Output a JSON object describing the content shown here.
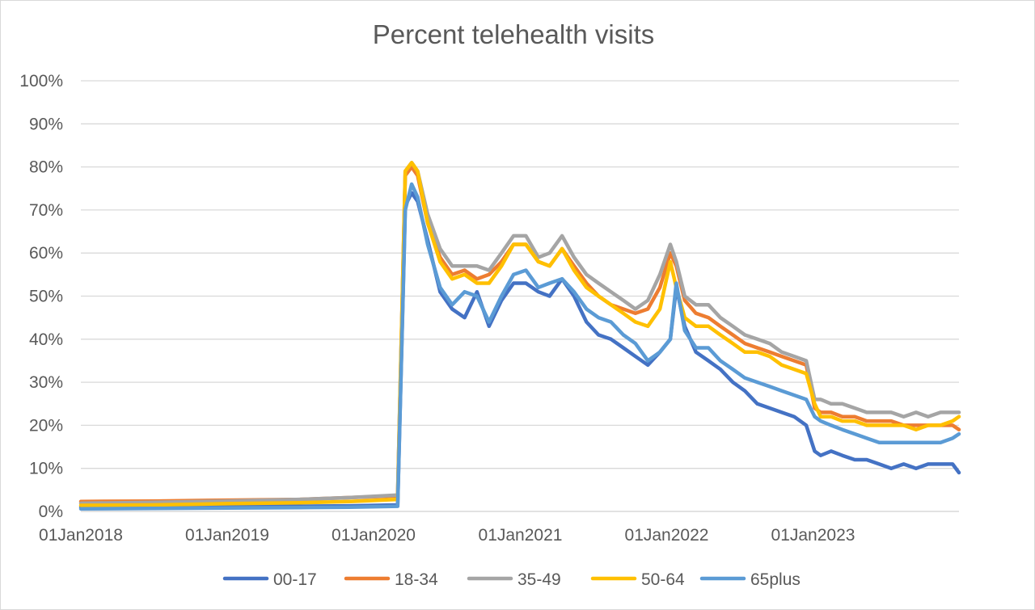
{
  "chart_data": {
    "type": "line",
    "title": "Percent telehealth visits",
    "xlabel": "",
    "ylabel": "",
    "x_range": [
      "2018-01-01",
      "2023-12-31"
    ],
    "x_tick_labels": [
      "01Jan2018",
      "01Jan2019",
      "01Jan2020",
      "01Jan2021",
      "01Jan2022",
      "01Jan2023"
    ],
    "x_tick_dates": [
      "2018-01-01",
      "2019-01-01",
      "2020-01-01",
      "2021-01-01",
      "2022-01-01",
      "2023-01-01"
    ],
    "ylim": [
      0,
      100
    ],
    "y_tick_labels": [
      "0%",
      "10%",
      "20%",
      "30%",
      "40%",
      "50%",
      "60%",
      "70%",
      "80%",
      "90%",
      "100%"
    ],
    "y_tick_values": [
      0,
      10,
      20,
      30,
      40,
      50,
      60,
      70,
      80,
      90,
      100
    ],
    "grid": "horizontal",
    "legend_position": "bottom",
    "x": [
      "2018-01-01",
      "2018-07-01",
      "2019-01-01",
      "2019-07-01",
      "2019-11-01",
      "2020-03-01",
      "2020-03-20",
      "2020-04-05",
      "2020-04-20",
      "2020-05-15",
      "2020-06-15",
      "2020-07-15",
      "2020-08-15",
      "2020-09-15",
      "2020-10-15",
      "2020-11-15",
      "2020-12-15",
      "2021-01-15",
      "2021-02-15",
      "2021-03-15",
      "2021-04-15",
      "2021-05-15",
      "2021-06-15",
      "2021-07-15",
      "2021-08-15",
      "2021-09-15",
      "2021-10-15",
      "2021-11-15",
      "2021-12-15",
      "2022-01-10",
      "2022-01-25",
      "2022-02-15",
      "2022-03-15",
      "2022-04-15",
      "2022-05-15",
      "2022-06-15",
      "2022-07-15",
      "2022-08-15",
      "2022-09-15",
      "2022-10-15",
      "2022-11-15",
      "2022-12-15",
      "2023-01-05",
      "2023-01-20",
      "2023-02-15",
      "2023-03-15",
      "2023-04-15",
      "2023-05-15",
      "2023-06-15",
      "2023-07-15",
      "2023-08-15",
      "2023-09-15",
      "2023-10-15",
      "2023-11-15",
      "2023-12-15",
      "2023-12-31"
    ],
    "series": [
      {
        "name": "00-17",
        "color": "#4472c4",
        "values": [
          1.0,
          1.0,
          1.2,
          1.2,
          1.3,
          1.5,
          71,
          74,
          72,
          63,
          51,
          47,
          45,
          51,
          43,
          49,
          53,
          53,
          51,
          50,
          54,
          50,
          44,
          41,
          40,
          38,
          36,
          34,
          37,
          40,
          52,
          43,
          37,
          35,
          33,
          30,
          28,
          25,
          24,
          23,
          22,
          20,
          14,
          13,
          14,
          13,
          12,
          12,
          11,
          10,
          11,
          10,
          11,
          11,
          11,
          9
        ]
      },
      {
        "name": "18-34",
        "color": "#ed7d31",
        "values": [
          2.3,
          2.4,
          2.6,
          2.8,
          3.2,
          3.6,
          78,
          80,
          78,
          67,
          59,
          55,
          56,
          54,
          55,
          58,
          62,
          62,
          58,
          57,
          61,
          57,
          53,
          50,
          48,
          47,
          46,
          47,
          52,
          60,
          57,
          49,
          46,
          45,
          43,
          41,
          39,
          38,
          37,
          36,
          35,
          34,
          24,
          23,
          23,
          22,
          22,
          21,
          21,
          21,
          20,
          20,
          20,
          20,
          20,
          19
        ]
      },
      {
        "name": "35-49",
        "color": "#a5a5a5",
        "values": [
          1.9,
          2.1,
          2.4,
          2.8,
          3.2,
          3.8,
          79,
          81,
          79,
          69,
          61,
          57,
          57,
          57,
          56,
          60,
          64,
          64,
          59,
          60,
          64,
          59,
          55,
          53,
          51,
          49,
          47,
          49,
          55,
          62,
          58,
          50,
          48,
          48,
          45,
          43,
          41,
          40,
          39,
          37,
          36,
          35,
          26,
          26,
          25,
          25,
          24,
          23,
          23,
          23,
          22,
          23,
          22,
          23,
          23,
          23
        ]
      },
      {
        "name": "50-64",
        "color": "#ffc000",
        "values": [
          1.4,
          1.5,
          1.8,
          2.0,
          2.3,
          2.8,
          79,
          81,
          79,
          67,
          58,
          54,
          55,
          53,
          53,
          57,
          62,
          62,
          58,
          57,
          61,
          56,
          52,
          50,
          48,
          46,
          44,
          43,
          47,
          58,
          52,
          45,
          43,
          43,
          41,
          39,
          37,
          37,
          36,
          34,
          33,
          32,
          25,
          22,
          22,
          21,
          21,
          20,
          20,
          20,
          20,
          19,
          20,
          20,
          21,
          22
        ]
      },
      {
        "name": "65plus",
        "color": "#5b9bd5",
        "values": [
          0.6,
          0.7,
          0.8,
          0.9,
          1.0,
          1.2,
          70,
          76,
          73,
          62,
          52,
          48,
          51,
          50,
          44,
          50,
          55,
          56,
          52,
          53,
          54,
          51,
          47,
          45,
          44,
          41,
          39,
          35,
          37,
          40,
          53,
          42,
          38,
          38,
          35,
          33,
          31,
          30,
          29,
          28,
          27,
          26,
          22,
          21,
          20,
          19,
          18,
          17,
          16,
          16,
          16,
          16,
          16,
          16,
          17,
          18
        ]
      }
    ]
  }
}
